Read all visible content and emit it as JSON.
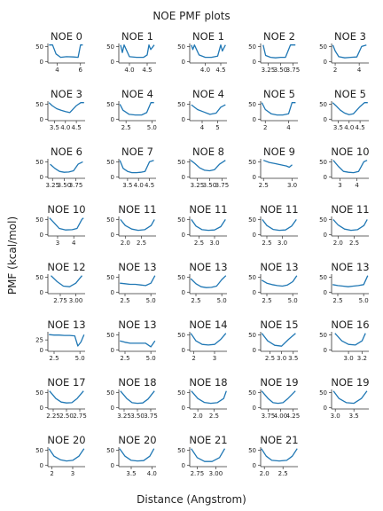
{
  "figure": {
    "title": "NOE PMF plots",
    "xlabel": "Distance (Angstrom)",
    "ylabel": "PMF (kcal/mol)"
  },
  "chart_data": [
    {
      "type": "line",
      "title": "NOE 0",
      "xticks": [
        "4",
        "6"
      ],
      "yticks": [
        "0",
        "50"
      ],
      "xlim": [
        3.2,
        6.4
      ],
      "ylim": [
        -5,
        60
      ],
      "x": [
        3.3,
        3.6,
        3.9,
        4.3,
        4.8,
        5.4,
        5.8,
        6.0,
        6.2
      ],
      "y": [
        55,
        55,
        25,
        14,
        16,
        15,
        14,
        55,
        55
      ]
    },
    {
      "type": "line",
      "title": "NOE 1",
      "xticks": [
        "4.0",
        "4.5"
      ],
      "yticks": [
        "0",
        "50"
      ],
      "xlim": [
        3.7,
        4.75
      ],
      "ylim": [
        -5,
        60
      ],
      "x": [
        3.75,
        3.8,
        3.85,
        4.0,
        4.2,
        4.4,
        4.5,
        4.55,
        4.6,
        4.7
      ],
      "y": [
        55,
        30,
        55,
        16,
        14,
        14,
        22,
        55,
        40,
        55
      ]
    },
    {
      "type": "line",
      "title": "NOE 1",
      "xticks": [
        "4.0",
        "4.5"
      ],
      "yticks": [
        "0",
        "50"
      ],
      "xlim": [
        3.5,
        4.7
      ],
      "ylim": [
        -5,
        60
      ],
      "x": [
        3.55,
        3.6,
        3.65,
        3.8,
        4.0,
        4.2,
        4.4,
        4.5,
        4.55,
        4.65
      ],
      "y": [
        55,
        40,
        55,
        22,
        14,
        14,
        18,
        55,
        35,
        55
      ]
    },
    {
      "type": "line",
      "title": "NOE 2",
      "xticks": [
        "3.25",
        "3.50",
        "3.75"
      ],
      "yticks": [
        "0",
        "50"
      ],
      "xlim": [
        3.1,
        3.85
      ],
      "ylim": [
        -5,
        60
      ],
      "x": [
        3.15,
        3.2,
        3.3,
        3.4,
        3.5,
        3.6,
        3.7,
        3.8
      ],
      "y": [
        55,
        20,
        14,
        12,
        14,
        14,
        55,
        55
      ]
    },
    {
      "type": "line",
      "title": "NOE 3",
      "xticks": [
        "2",
        "4"
      ],
      "yticks": [
        "0",
        "50"
      ],
      "xlim": [
        1.7,
        4.8
      ],
      "ylim": [
        -5,
        60
      ],
      "x": [
        1.8,
        2.0,
        2.3,
        2.8,
        3.3,
        3.8,
        4.2,
        4.6
      ],
      "y": [
        55,
        35,
        16,
        12,
        14,
        15,
        50,
        55
      ]
    },
    {
      "type": "line",
      "title": "NOE 3",
      "xticks": [
        "3.5",
        "4.0",
        "4.5"
      ],
      "yticks": [
        "0",
        "50"
      ],
      "xlim": [
        3.2,
        4.9
      ],
      "ylim": [
        -5,
        60
      ],
      "x": [
        3.25,
        3.4,
        3.6,
        3.8,
        4.0,
        4.2,
        4.5,
        4.7,
        4.85
      ],
      "y": [
        55,
        45,
        35,
        30,
        25,
        22,
        45,
        55,
        55
      ]
    },
    {
      "type": "line",
      "title": "NOE 4",
      "xticks": [
        "2.5",
        "5.0"
      ],
      "yticks": [
        "0",
        "50"
      ],
      "xlim": [
        1.8,
        5.4
      ],
      "ylim": [
        -5,
        60
      ],
      "x": [
        1.9,
        2.2,
        2.8,
        3.4,
        4.0,
        4.5,
        4.9,
        5.2
      ],
      "y": [
        50,
        30,
        16,
        14,
        14,
        22,
        55,
        55
      ]
    },
    {
      "type": "line",
      "title": "NOE 4",
      "xticks": [
        "4",
        "5"
      ],
      "yticks": [
        "0",
        "50"
      ],
      "xlim": [
        3.2,
        5.6
      ],
      "ylim": [
        -5,
        60
      ],
      "x": [
        3.3,
        3.7,
        4.1,
        4.5,
        4.9,
        5.2,
        5.5
      ],
      "y": [
        48,
        32,
        24,
        16,
        20,
        40,
        48
      ]
    },
    {
      "type": "line",
      "title": "NOE 5",
      "xticks": [
        "2",
        "4"
      ],
      "yticks": [
        "0",
        "50"
      ],
      "xlim": [
        1.6,
        4.8
      ],
      "ylim": [
        -5,
        60
      ],
      "x": [
        1.7,
        2.0,
        2.5,
        3.0,
        3.5,
        4.0,
        4.3,
        4.6
      ],
      "y": [
        55,
        32,
        18,
        14,
        14,
        18,
        55,
        55
      ]
    },
    {
      "type": "line",
      "title": "NOE 5",
      "xticks": [
        "3.5",
        "4.0",
        "4.5"
      ],
      "yticks": [
        "0",
        "50"
      ],
      "xlim": [
        3.2,
        4.9
      ],
      "ylim": [
        -5,
        60
      ],
      "x": [
        3.25,
        3.4,
        3.6,
        3.8,
        4.0,
        4.2,
        4.5,
        4.7,
        4.85
      ],
      "y": [
        55,
        45,
        30,
        20,
        15,
        18,
        42,
        55,
        55
      ]
    },
    {
      "type": "line",
      "title": "NOE 6",
      "xticks": [
        "3.25",
        "3.50",
        "3.75"
      ],
      "yticks": [
        "0",
        "50"
      ],
      "xlim": [
        3.15,
        3.95
      ],
      "ylim": [
        -5,
        60
      ],
      "x": [
        3.2,
        3.3,
        3.4,
        3.5,
        3.6,
        3.7,
        3.8,
        3.9
      ],
      "y": [
        42,
        28,
        18,
        15,
        16,
        20,
        42,
        50
      ]
    },
    {
      "type": "line",
      "title": "NOE 7",
      "xticks": [
        "3.5",
        "4.0",
        "4.5"
      ],
      "yticks": [
        "0",
        "50"
      ],
      "xlim": [
        3.1,
        4.8
      ],
      "ylim": [
        -5,
        60
      ],
      "x": [
        3.15,
        3.3,
        3.5,
        3.7,
        3.9,
        4.1,
        4.3,
        4.5,
        4.7
      ],
      "y": [
        55,
        28,
        18,
        14,
        14,
        15,
        18,
        50,
        55
      ]
    },
    {
      "type": "line",
      "title": "NOE 8",
      "xticks": [
        "3.25",
        "3.50",
        "3.75"
      ],
      "yticks": [
        "0",
        "50"
      ],
      "xlim": [
        3.1,
        3.85
      ],
      "ylim": [
        -5,
        60
      ],
      "x": [
        3.12,
        3.2,
        3.3,
        3.4,
        3.5,
        3.6,
        3.7,
        3.82
      ],
      "y": [
        55,
        45,
        30,
        22,
        20,
        24,
        42,
        55
      ]
    },
    {
      "type": "line",
      "title": "NOE 9",
      "xticks": [
        "2.5",
        "3.0"
      ],
      "yticks": [
        "0",
        "50"
      ],
      "xlim": [
        2.45,
        3.1
      ],
      "ylim": [
        -5,
        60
      ],
      "x": [
        2.5,
        2.6,
        2.7,
        2.8,
        2.9,
        2.95,
        3.0
      ],
      "y": [
        55,
        48,
        44,
        40,
        36,
        32,
        40
      ]
    },
    {
      "type": "line",
      "title": "NOE 10",
      "xticks": [
        "3",
        "4"
      ],
      "yticks": [
        "0",
        "50"
      ],
      "xlim": [
        2.5,
        4.7
      ],
      "ylim": [
        -5,
        60
      ],
      "x": [
        2.6,
        2.9,
        3.2,
        3.5,
        3.8,
        4.1,
        4.4,
        4.6
      ],
      "y": [
        55,
        35,
        18,
        15,
        14,
        18,
        50,
        55
      ]
    },
    {
      "type": "line",
      "title": "NOE 10",
      "xticks": [
        "3",
        "4"
      ],
      "yticks": [
        "0",
        "50"
      ],
      "xlim": [
        2.4,
        4.7
      ],
      "ylim": [
        -5,
        60
      ],
      "x": [
        2.5,
        2.8,
        3.1,
        3.5,
        3.9,
        4.2,
        4.5,
        4.6
      ],
      "y": [
        55,
        38,
        20,
        15,
        16,
        20,
        50,
        55
      ]
    },
    {
      "type": "line",
      "title": "NOE 11",
      "xticks": [
        "2.0",
        "2.5"
      ],
      "yticks": [
        "0",
        "50"
      ],
      "xlim": [
        1.8,
        2.95
      ],
      "ylim": [
        -5,
        60
      ],
      "x": [
        1.85,
        2.0,
        2.2,
        2.4,
        2.6,
        2.8,
        2.9
      ],
      "y": [
        50,
        30,
        18,
        14,
        16,
        30,
        50
      ]
    },
    {
      "type": "line",
      "title": "NOE 11",
      "xticks": [
        "2.5",
        "3.0"
      ],
      "yticks": [
        "0",
        "50"
      ],
      "xlim": [
        2.2,
        3.4
      ],
      "ylim": [
        -5,
        60
      ],
      "x": [
        2.25,
        2.4,
        2.6,
        2.8,
        3.0,
        3.2,
        3.35
      ],
      "y": [
        50,
        28,
        16,
        14,
        15,
        26,
        50
      ]
    },
    {
      "type": "line",
      "title": "NOE 11",
      "xticks": [
        "2.5",
        "3.0"
      ],
      "yticks": [
        "0",
        "50"
      ],
      "xlim": [
        2.3,
        3.5
      ],
      "ylim": [
        -5,
        60
      ],
      "x": [
        2.35,
        2.5,
        2.7,
        2.9,
        3.1,
        3.3,
        3.45
      ],
      "y": [
        50,
        30,
        17,
        14,
        15,
        28,
        50
      ]
    },
    {
      "type": "line",
      "title": "NOE 11",
      "xticks": [
        "2.0",
        "2.5"
      ],
      "yticks": [
        "0",
        "50"
      ],
      "xlim": [
        1.8,
        2.95
      ],
      "ylim": [
        -5,
        60
      ],
      "x": [
        1.85,
        2.0,
        2.2,
        2.4,
        2.6,
        2.8,
        2.9
      ],
      "y": [
        50,
        32,
        18,
        14,
        16,
        30,
        50
      ]
    },
    {
      "type": "line",
      "title": "NOE 12",
      "xticks": [
        "2.75",
        "3.00"
      ],
      "yticks": [
        "0",
        "50"
      ],
      "xlim": [
        2.55,
        3.15
      ],
      "ylim": [
        -5,
        60
      ],
      "x": [
        2.6,
        2.7,
        2.8,
        2.9,
        3.0,
        3.1
      ],
      "y": [
        55,
        35,
        20,
        18,
        30,
        55
      ]
    },
    {
      "type": "line",
      "title": "NOE 13",
      "xticks": [
        "2.5",
        "5.0"
      ],
      "yticks": [
        "0",
        "50"
      ],
      "xlim": [
        1.9,
        5.5
      ],
      "ylim": [
        -5,
        60
      ],
      "x": [
        2.0,
        2.5,
        3.0,
        3.5,
        4.0,
        4.5,
        5.0,
        5.4
      ],
      "y": [
        30,
        28,
        26,
        26,
        24,
        22,
        30,
        55
      ]
    },
    {
      "type": "line",
      "title": "NOE 13",
      "xticks": [
        "2.5",
        "5.0"
      ],
      "yticks": [
        "0",
        "50"
      ],
      "xlim": [
        1.9,
        5.5
      ],
      "ylim": [
        -5,
        60
      ],
      "x": [
        2.0,
        2.5,
        3.0,
        3.5,
        4.0,
        4.5,
        5.0,
        5.4
      ],
      "y": [
        45,
        28,
        18,
        15,
        16,
        20,
        42,
        55
      ]
    },
    {
      "type": "line",
      "title": "NOE 13",
      "xticks": [
        "2.5",
        "5.0"
      ],
      "yticks": [
        "0",
        "50"
      ],
      "xlim": [
        1.9,
        5.5
      ],
      "ylim": [
        -5,
        60
      ],
      "x": [
        2.0,
        2.5,
        3.0,
        3.5,
        4.0,
        4.5,
        5.0,
        5.4
      ],
      "y": [
        40,
        30,
        25,
        22,
        20,
        24,
        35,
        55
      ]
    },
    {
      "type": "line",
      "title": "NOE 13",
      "xticks": [
        "2.5",
        "5.0"
      ],
      "yticks": [
        "0",
        "50"
      ],
      "xlim": [
        1.9,
        5.5
      ],
      "ylim": [
        -5,
        60
      ],
      "x": [
        2.0,
        2.5,
        3.0,
        3.5,
        4.0,
        4.5,
        5.0,
        5.4
      ],
      "y": [
        25,
        22,
        20,
        18,
        20,
        22,
        25,
        55
      ]
    },
    {
      "type": "line",
      "title": "NOE 13",
      "xticks": [
        "2.5",
        "5.0"
      ],
      "yticks": [
        "0",
        "25"
      ],
      "xlim": [
        1.9,
        5.5
      ],
      "ylim": [
        -3,
        45
      ],
      "x": [
        2.0,
        2.5,
        3.0,
        3.5,
        4.0,
        4.5,
        4.8,
        5.1,
        5.4
      ],
      "y": [
        38,
        37,
        37,
        36,
        36,
        35,
        10,
        20,
        38
      ]
    },
    {
      "type": "line",
      "title": "NOE 13",
      "xticks": [
        "2.5",
        "5.0"
      ],
      "yticks": [
        "0",
        "50"
      ],
      "xlim": [
        1.9,
        5.5
      ],
      "ylim": [
        -5,
        60
      ],
      "x": [
        2.0,
        2.5,
        3.0,
        3.5,
        4.0,
        4.5,
        5.0,
        5.4
      ],
      "y": [
        30,
        25,
        22,
        22,
        22,
        22,
        10,
        30
      ]
    },
    {
      "type": "line",
      "title": "NOE 14",
      "xticks": [
        "2",
        "3"
      ],
      "yticks": [
        "0",
        "50"
      ],
      "xlim": [
        1.8,
        3.6
      ],
      "ylim": [
        -5,
        60
      ],
      "x": [
        1.85,
        2.1,
        2.4,
        2.7,
        3.0,
        3.3,
        3.55
      ],
      "y": [
        55,
        30,
        18,
        16,
        18,
        35,
        55
      ]
    },
    {
      "type": "line",
      "title": "NOE 15",
      "xticks": [
        "2.5",
        "3.0",
        "3.5"
      ],
      "yticks": [
        "0",
        "50"
      ],
      "xlim": [
        2.1,
        3.7
      ],
      "ylim": [
        -5,
        60
      ],
      "x": [
        2.15,
        2.4,
        2.7,
        3.0,
        3.3,
        3.6
      ],
      "y": [
        55,
        30,
        15,
        12,
        35,
        55
      ]
    },
    {
      "type": "line",
      "title": "NOE 16",
      "xticks": [
        "3.0",
        "3.2"
      ],
      "yticks": [
        "0",
        "50"
      ],
      "xlim": [
        2.75,
        3.3
      ],
      "ylim": [
        -5,
        60
      ],
      "x": [
        2.8,
        2.9,
        3.0,
        3.1,
        3.2,
        3.25
      ],
      "y": [
        55,
        30,
        18,
        16,
        30,
        55
      ]
    },
    {
      "type": "line",
      "title": "NOE 17",
      "xticks": [
        "2.25",
        "2.50",
        "2.75"
      ],
      "yticks": [
        "0",
        "50"
      ],
      "xlim": [
        2.15,
        2.85
      ],
      "ylim": [
        -5,
        60
      ],
      "x": [
        2.18,
        2.3,
        2.4,
        2.5,
        2.6,
        2.7,
        2.82
      ],
      "y": [
        55,
        30,
        18,
        15,
        16,
        30,
        55
      ]
    },
    {
      "type": "line",
      "title": "NOE 18",
      "xticks": [
        "3.25",
        "3.50",
        "3.75"
      ],
      "yticks": [
        "0",
        "50"
      ],
      "xlim": [
        3.15,
        3.85
      ],
      "ylim": [
        -5,
        60
      ],
      "x": [
        3.18,
        3.3,
        3.4,
        3.5,
        3.6,
        3.7,
        3.82
      ],
      "y": [
        55,
        30,
        16,
        14,
        15,
        28,
        55
      ]
    },
    {
      "type": "line",
      "title": "NOE 18",
      "xticks": [
        "2.0",
        "2.5"
      ],
      "yticks": [
        "0",
        "50"
      ],
      "xlim": [
        1.75,
        2.9
      ],
      "ylim": [
        -5,
        60
      ],
      "x": [
        1.8,
        2.0,
        2.2,
        2.4,
        2.6,
        2.8,
        2.88
      ],
      "y": [
        55,
        30,
        17,
        14,
        16,
        30,
        55
      ]
    },
    {
      "type": "line",
      "title": "NOE 19",
      "xticks": [
        "3.75",
        "4.00",
        "4.25"
      ],
      "yticks": [
        "0",
        "50"
      ],
      "xlim": [
        3.6,
        4.35
      ],
      "ylim": [
        -5,
        60
      ],
      "x": [
        3.62,
        3.75,
        3.85,
        3.95,
        4.05,
        4.15,
        4.3
      ],
      "y": [
        55,
        30,
        16,
        14,
        16,
        30,
        55
      ]
    },
    {
      "type": "line",
      "title": "NOE 19",
      "xticks": [
        "3.0",
        "3.5"
      ],
      "yticks": [
        "0",
        "50"
      ],
      "xlim": [
        2.9,
        3.9
      ],
      "ylim": [
        -5,
        60
      ],
      "x": [
        2.95,
        3.1,
        3.3,
        3.5,
        3.7,
        3.85
      ],
      "y": [
        55,
        30,
        16,
        14,
        30,
        55
      ]
    },
    {
      "type": "line",
      "title": "NOE 20",
      "xticks": [
        "2",
        "3"
      ],
      "yticks": [
        "0",
        "50"
      ],
      "xlim": [
        1.8,
        3.6
      ],
      "ylim": [
        -5,
        60
      ],
      "x": [
        1.85,
        2.1,
        2.4,
        2.7,
        3.0,
        3.3,
        3.55
      ],
      "y": [
        55,
        30,
        18,
        14,
        16,
        30,
        55
      ]
    },
    {
      "type": "line",
      "title": "NOE 20",
      "xticks": [
        "3.5",
        "4.0"
      ],
      "yticks": [
        "0",
        "50"
      ],
      "xlim": [
        3.2,
        4.1
      ],
      "ylim": [
        -5,
        60
      ],
      "x": [
        3.22,
        3.35,
        3.5,
        3.65,
        3.8,
        3.95,
        4.05
      ],
      "y": [
        55,
        30,
        16,
        14,
        15,
        30,
        55
      ]
    },
    {
      "type": "line",
      "title": "NOE 21",
      "xticks": [
        "2.75",
        "3.00"
      ],
      "yticks": [
        "0",
        "50"
      ],
      "xlim": [
        2.65,
        3.15
      ],
      "ylim": [
        -5,
        60
      ],
      "x": [
        2.67,
        2.75,
        2.85,
        2.95,
        3.05,
        3.12
      ],
      "y": [
        55,
        25,
        12,
        12,
        25,
        55
      ]
    },
    {
      "type": "line",
      "title": "NOE 21",
      "xticks": [
        "2.0",
        "2.5"
      ],
      "yticks": [
        "0",
        "50"
      ],
      "xlim": [
        1.9,
        2.9
      ],
      "ylim": [
        -5,
        60
      ],
      "x": [
        1.92,
        2.05,
        2.2,
        2.4,
        2.6,
        2.75,
        2.88
      ],
      "y": [
        55,
        30,
        16,
        14,
        16,
        30,
        55
      ]
    }
  ]
}
